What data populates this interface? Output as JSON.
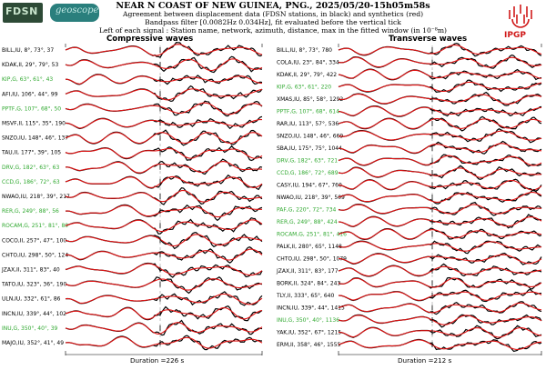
{
  "header": {
    "title": "NEAR N COAST OF NEW GUINEA, PNG., 2025/05/20-15h05m58s",
    "line2": "Agreement between displacement data (FDSN stations, in black) and synthetics (red)",
    "line3": "Bandpass filter [0.0082Hz 0.034Hz], fit evaluated before the vertical tick",
    "line4": "Left of each signal : Station name, network, azimuth, distance, max in the fitted window (in 10⁻⁸m)"
  },
  "logos": {
    "fdsn": "FDSN",
    "geoscope": "geoscope",
    "ipgp": "IPGP"
  },
  "colors": {
    "data": "#000000",
    "synthetic": "#e01010",
    "green_label": "#2fa82f",
    "black_label": "#000000"
  },
  "panels": [
    {
      "title": "Compressive waves",
      "duration": "Duration =226 s",
      "stations": [
        {
          "name": "BILL,IU",
          "az": "8",
          "dist": "73",
          "max": "37",
          "green": false
        },
        {
          "name": "KDAK,II",
          "az": "29",
          "dist": "79",
          "max": "53",
          "green": false
        },
        {
          "name": "KIP,G",
          "az": "63",
          "dist": "61",
          "max": "43",
          "green": true
        },
        {
          "name": "AFI,IU",
          "az": "106",
          "dist": "44",
          "max": "99",
          "green": false
        },
        {
          "name": "PPTF,G",
          "az": "107",
          "dist": "68",
          "max": "50",
          "green": true
        },
        {
          "name": "MSVF,II",
          "az": "115",
          "dist": "35",
          "max": "190",
          "green": false
        },
        {
          "name": "SNZO,IU",
          "az": "148",
          "dist": "46",
          "max": "137",
          "green": false
        },
        {
          "name": "TAU,II",
          "az": "177",
          "dist": "39",
          "max": "105",
          "green": false
        },
        {
          "name": "DRV,G",
          "az": "182",
          "dist": "63",
          "max": "63",
          "green": true
        },
        {
          "name": "CCD,G",
          "az": "186",
          "dist": "72",
          "max": "63",
          "green": true
        },
        {
          "name": "NWAO,IU",
          "az": "218",
          "dist": "39",
          "max": "217",
          "green": false
        },
        {
          "name": "RER,G",
          "az": "249",
          "dist": "88",
          "max": "56",
          "green": true
        },
        {
          "name": "ROCAM,G",
          "az": "251",
          "dist": "81",
          "max": "80",
          "green": true
        },
        {
          "name": "COCO,II",
          "az": "257",
          "dist": "47",
          "max": "100",
          "green": false
        },
        {
          "name": "CHTO,IU",
          "az": "298",
          "dist": "50",
          "max": "124",
          "green": false
        },
        {
          "name": "JZAX,II",
          "az": "311",
          "dist": "83",
          "max": "40",
          "green": false
        },
        {
          "name": "TATO,IU",
          "az": "323",
          "dist": "36",
          "max": "190",
          "green": false
        },
        {
          "name": "ULN,IU",
          "az": "332",
          "dist": "61",
          "max": "86",
          "green": false
        },
        {
          "name": "INCN,IU",
          "az": "339",
          "dist": "44",
          "max": "102",
          "green": false
        },
        {
          "name": "INU,G",
          "az": "350",
          "dist": "40",
          "max": "39",
          "green": true
        },
        {
          "name": "MAJO,IU",
          "az": "352",
          "dist": "41",
          "max": "49",
          "green": false
        }
      ]
    },
    {
      "title": "Transverse waves",
      "duration": "Duration =212 s",
      "stations": [
        {
          "name": "BILL,IU",
          "az": "8",
          "dist": "73",
          "max": "780",
          "green": false
        },
        {
          "name": "COLA,IU",
          "az": "23",
          "dist": "84",
          "max": "334",
          "green": false
        },
        {
          "name": "KDAK,II",
          "az": "29",
          "dist": "79",
          "max": "422",
          "green": false
        },
        {
          "name": "KIP,G",
          "az": "63",
          "dist": "61",
          "max": "220",
          "green": true
        },
        {
          "name": "XMAS,IU",
          "az": "85",
          "dist": "58",
          "max": "1292",
          "green": false
        },
        {
          "name": "PPTF,G",
          "az": "107",
          "dist": "68",
          "max": "614",
          "green": true
        },
        {
          "name": "RAR,IU",
          "az": "113",
          "dist": "57",
          "max": "536",
          "green": false
        },
        {
          "name": "SNZO,IU",
          "az": "148",
          "dist": "46",
          "max": "669",
          "green": false
        },
        {
          "name": "SBA,IU",
          "az": "175",
          "dist": "75",
          "max": "1044",
          "green": false
        },
        {
          "name": "DRV,G",
          "az": "182",
          "dist": "63",
          "max": "721",
          "green": true
        },
        {
          "name": "CCD,G",
          "az": "186",
          "dist": "72",
          "max": "689",
          "green": true
        },
        {
          "name": "CASY,IU",
          "az": "194",
          "dist": "67",
          "max": "760",
          "green": false
        },
        {
          "name": "NWAO,IU",
          "az": "218",
          "dist": "39",
          "max": "509",
          "green": false
        },
        {
          "name": "PAF,G",
          "az": "220",
          "dist": "72",
          "max": "734",
          "green": true
        },
        {
          "name": "RER,G",
          "az": "249",
          "dist": "88",
          "max": "424",
          "green": true
        },
        {
          "name": "ROCAM,G",
          "az": "251",
          "dist": "81",
          "max": "416",
          "green": true
        },
        {
          "name": "PALK,II",
          "az": "280",
          "dist": "65",
          "max": "1148",
          "green": false
        },
        {
          "name": "CHTO,IU",
          "az": "298",
          "dist": "50",
          "max": "1079",
          "green": false
        },
        {
          "name": "JZAX,II",
          "az": "311",
          "dist": "83",
          "max": "177",
          "green": false
        },
        {
          "name": "BORK,II",
          "az": "324",
          "dist": "84",
          "max": "243",
          "green": false
        },
        {
          "name": "TLY,II",
          "az": "333",
          "dist": "65",
          "max": "640",
          "green": false
        },
        {
          "name": "INCN,IU",
          "az": "339",
          "dist": "44",
          "max": "1415",
          "green": false
        },
        {
          "name": "INU,G",
          "az": "350",
          "dist": "40",
          "max": "1136",
          "green": true
        },
        {
          "name": "YAK,IU",
          "az": "352",
          "dist": "67",
          "max": "1215",
          "green": false
        },
        {
          "name": "ERM,II",
          "az": "358",
          "dist": "46",
          "max": "1555",
          "green": false
        }
      ]
    }
  ]
}
